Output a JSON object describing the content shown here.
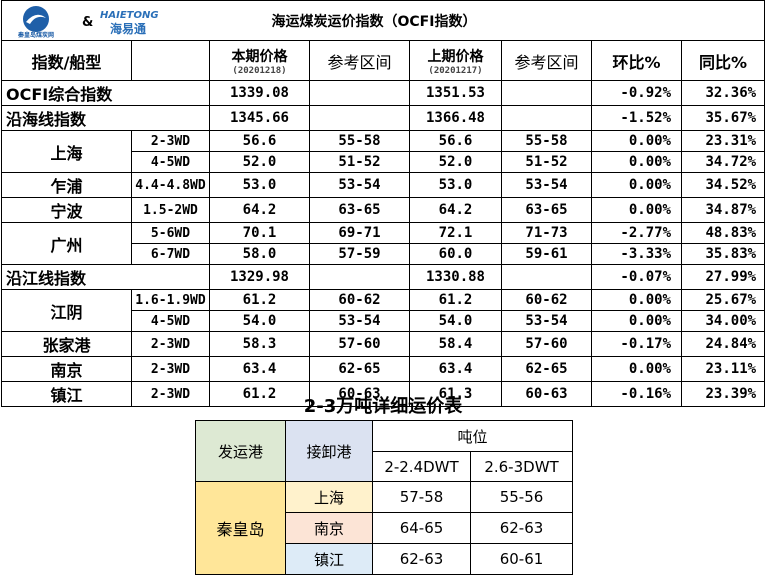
{
  "header": {
    "logo_text": "秦皇岛煤炭网",
    "amp": "&",
    "brand_en": "HAIETONG",
    "brand_cn": "海易通",
    "title": "海运煤炭运价指数（OCFI指数）"
  },
  "columns": {
    "name": "指数/船型",
    "cur": "本期价格",
    "cur_date": "(20201218)",
    "cur_range": "参考区间",
    "prev": "上期价格",
    "prev_date": "(20201217)",
    "prev_range": "参考区间",
    "mom": "环比%",
    "yoy": "同比%"
  },
  "rows": [
    {
      "name": "OCFI综合指数",
      "cur": "1339.08",
      "prev": "1351.53",
      "mom": "-0.92%",
      "yoy": "32.36%"
    },
    {
      "name": "沿海线指数",
      "cur": "1345.66",
      "prev": "1366.48",
      "mom": "-1.52%",
      "yoy": "35.67%"
    },
    {
      "port": "上海",
      "ship": "2-3WD",
      "cur": "56.6",
      "cur_range": "55-58",
      "prev": "56.6",
      "prev_range": "55-58",
      "mom": "0.00%",
      "yoy": "23.31%"
    },
    {
      "ship": "4-5WD",
      "cur": "52.0",
      "cur_range": "51-52",
      "prev": "52.0",
      "prev_range": "51-52",
      "mom": "0.00%",
      "yoy": "34.72%"
    },
    {
      "port": "乍浦",
      "ship": "4.4-4.8WD",
      "cur": "53.0",
      "cur_range": "53-54",
      "prev": "53.0",
      "prev_range": "53-54",
      "mom": "0.00%",
      "yoy": "34.52%"
    },
    {
      "port": "宁波",
      "ship": "1.5-2WD",
      "cur": "64.2",
      "cur_range": "63-65",
      "prev": "64.2",
      "prev_range": "63-65",
      "mom": "0.00%",
      "yoy": "34.87%"
    },
    {
      "port": "广州",
      "ship": "5-6WD",
      "cur": "70.1",
      "cur_range": "69-71",
      "prev": "72.1",
      "prev_range": "71-73",
      "mom": "-2.77%",
      "yoy": "48.83%"
    },
    {
      "ship": "6-7WD",
      "cur": "58.0",
      "cur_range": "57-59",
      "prev": "60.0",
      "prev_range": "59-61",
      "mom": "-3.33%",
      "yoy": "35.83%"
    },
    {
      "name": "沿江线指数",
      "cur": "1329.98",
      "prev": "1330.88",
      "mom": "-0.07%",
      "yoy": "27.99%"
    },
    {
      "port": "江阴",
      "ship": "1.6-1.9WD",
      "cur": "61.2",
      "cur_range": "60-62",
      "prev": "61.2",
      "prev_range": "60-62",
      "mom": "0.00%",
      "yoy": "25.67%"
    },
    {
      "ship": "4-5WD",
      "cur": "54.0",
      "cur_range": "53-54",
      "prev": "54.0",
      "prev_range": "53-54",
      "mom": "0.00%",
      "yoy": "34.00%"
    },
    {
      "port": "张家港",
      "ship": "2-3WD",
      "cur": "58.3",
      "cur_range": "57-60",
      "prev": "58.4",
      "prev_range": "57-60",
      "mom": "-0.17%",
      "yoy": "24.84%"
    },
    {
      "port": "南京",
      "ship": "2-3WD",
      "cur": "63.4",
      "cur_range": "62-65",
      "prev": "63.4",
      "prev_range": "62-65",
      "mom": "0.00%",
      "yoy": "23.11%"
    },
    {
      "port": "镇江",
      "ship": "2-3WD",
      "cur": "61.2",
      "cur_range": "60-63",
      "prev": "61.3",
      "prev_range": "60-63",
      "mom": "-0.16%",
      "yoy": "23.39%"
    }
  ],
  "detail": {
    "title": "2-3万吨详细运价表",
    "from_header": "发运港",
    "to_header": "接卸港",
    "tonnage_header": "吨位",
    "tonnages": [
      "2-2.4DWT",
      "2.6-3DWT"
    ],
    "from_port": "秦皇岛",
    "rows": [
      {
        "port": "上海",
        "prices": [
          "57-58",
          "55-56"
        ]
      },
      {
        "port": "南京",
        "prices": [
          "64-65",
          "62-63"
        ]
      },
      {
        "port": "镇江",
        "prices": [
          "62-63",
          "60-61"
        ]
      }
    ]
  }
}
